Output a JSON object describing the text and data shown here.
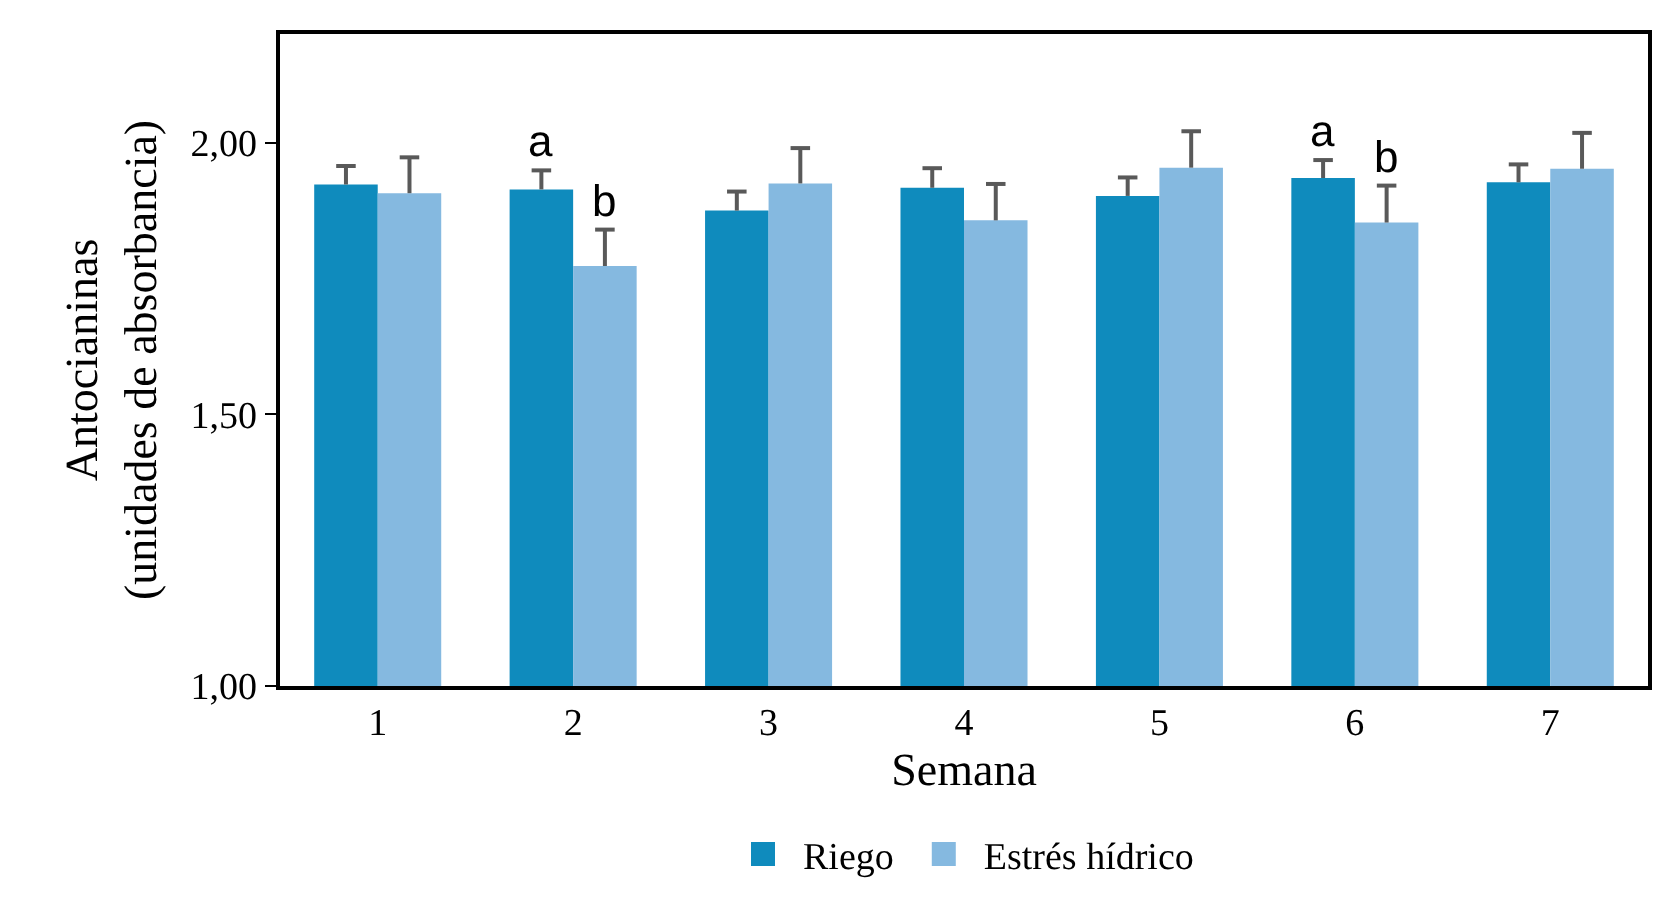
{
  "chart_data": {
    "type": "bar",
    "ylabel": "Antocianinas\n(unidades de absorbancia)",
    "xlabel": "Semana",
    "categories": [
      "1",
      "2",
      "3",
      "4",
      "5",
      "6",
      "7"
    ],
    "series": [
      {
        "name": "Riego",
        "color": "#0f8bbd",
        "values": [
          1.923,
          1.914,
          1.875,
          1.917,
          1.902,
          1.935,
          1.927
        ],
        "errors": [
          [
            1.923,
            1.957
          ],
          [
            1.914,
            1.949
          ],
          [
            1.875,
            1.91
          ],
          [
            1.917,
            1.953
          ],
          [
            1.902,
            1.936
          ],
          [
            1.935,
            1.968
          ],
          [
            1.927,
            1.96
          ]
        ]
      },
      {
        "name": "Estrés hídrico",
        "color": "#85b9e0",
        "values": [
          1.907,
          1.773,
          1.925,
          1.857,
          1.954,
          1.853,
          1.952
        ],
        "errors": [
          [
            1.907,
            1.973
          ],
          [
            1.773,
            1.84
          ],
          [
            1.925,
            1.99
          ],
          [
            1.857,
            1.924
          ],
          [
            1.954,
            2.021
          ],
          [
            1.853,
            1.921
          ],
          [
            1.952,
            2.018
          ]
        ]
      }
    ],
    "ylim": [
      1,
      2.2
    ],
    "yticks": [
      {
        "value": 1,
        "label": "1,00"
      },
      {
        "value": 1.5,
        "label": "1,50"
      },
      {
        "value": 2,
        "label": "2,00"
      }
    ],
    "annotations": [
      {
        "text": "a",
        "x": "2",
        "y": 1.914
      },
      {
        "text": "b",
        "x": "2",
        "y": 1.773
      },
      {
        "text": "a",
        "x": "6",
        "y": 1.935
      },
      {
        "text": "b",
        "x": "6",
        "y": 1.853
      }
    ],
    "grid": false,
    "legend": "bottom"
  }
}
